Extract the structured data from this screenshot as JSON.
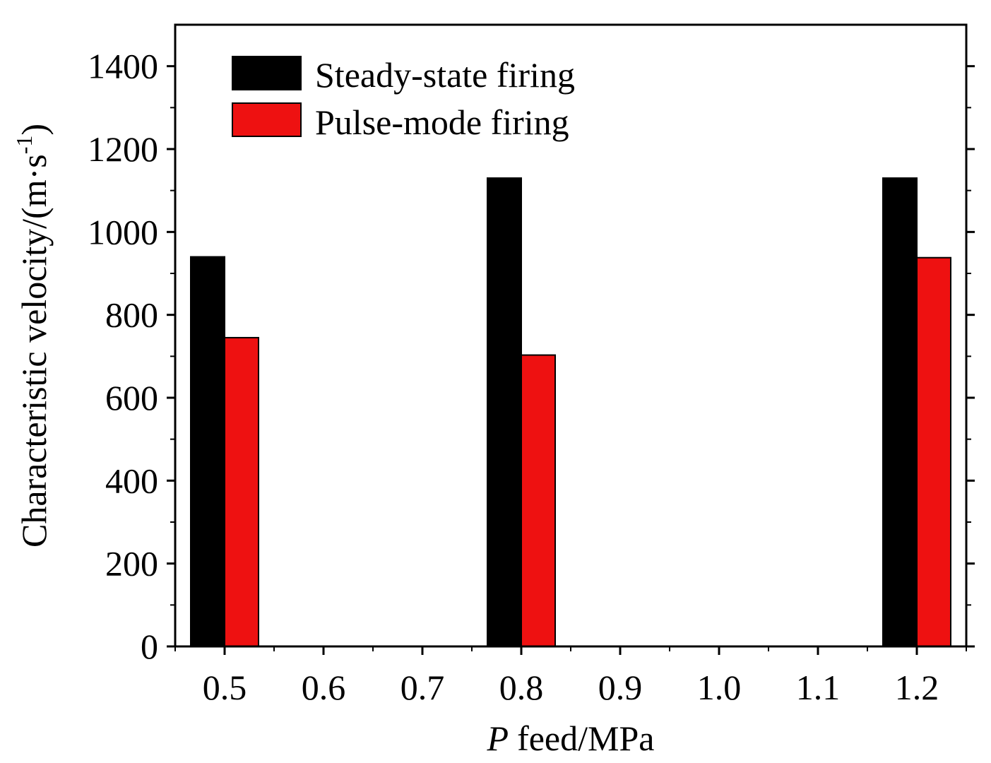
{
  "chart_data": {
    "type": "bar",
    "title": "",
    "xlabel": "feed/MPa",
    "xlabel_italic_prefix": "P",
    "ylabel": "Characteristic velocity/(m·s",
    "ylabel_superscript": "-1",
    "ylabel_suffix": ")",
    "xlim": [
      0.45,
      1.25
    ],
    "ylim": [
      0,
      1500
    ],
    "x_ticks": [
      "0.5",
      "0.6",
      "0.7",
      "0.8",
      "0.9",
      "1.0",
      "1.1",
      "1.2"
    ],
    "y_ticks": [
      "0",
      "200",
      "400",
      "600",
      "800",
      "1000",
      "1200",
      "1400"
    ],
    "x": [
      0.5,
      0.8,
      1.2
    ],
    "series": [
      {
        "name": "Steady-state firing",
        "color": "#000000",
        "values": [
          940,
          1130,
          1130
        ]
      },
      {
        "name": "Pulse-mode firing",
        "color": "#ee1111",
        "values": [
          745,
          703,
          938
        ]
      }
    ],
    "legend_position": "top-left",
    "grid": false
  }
}
